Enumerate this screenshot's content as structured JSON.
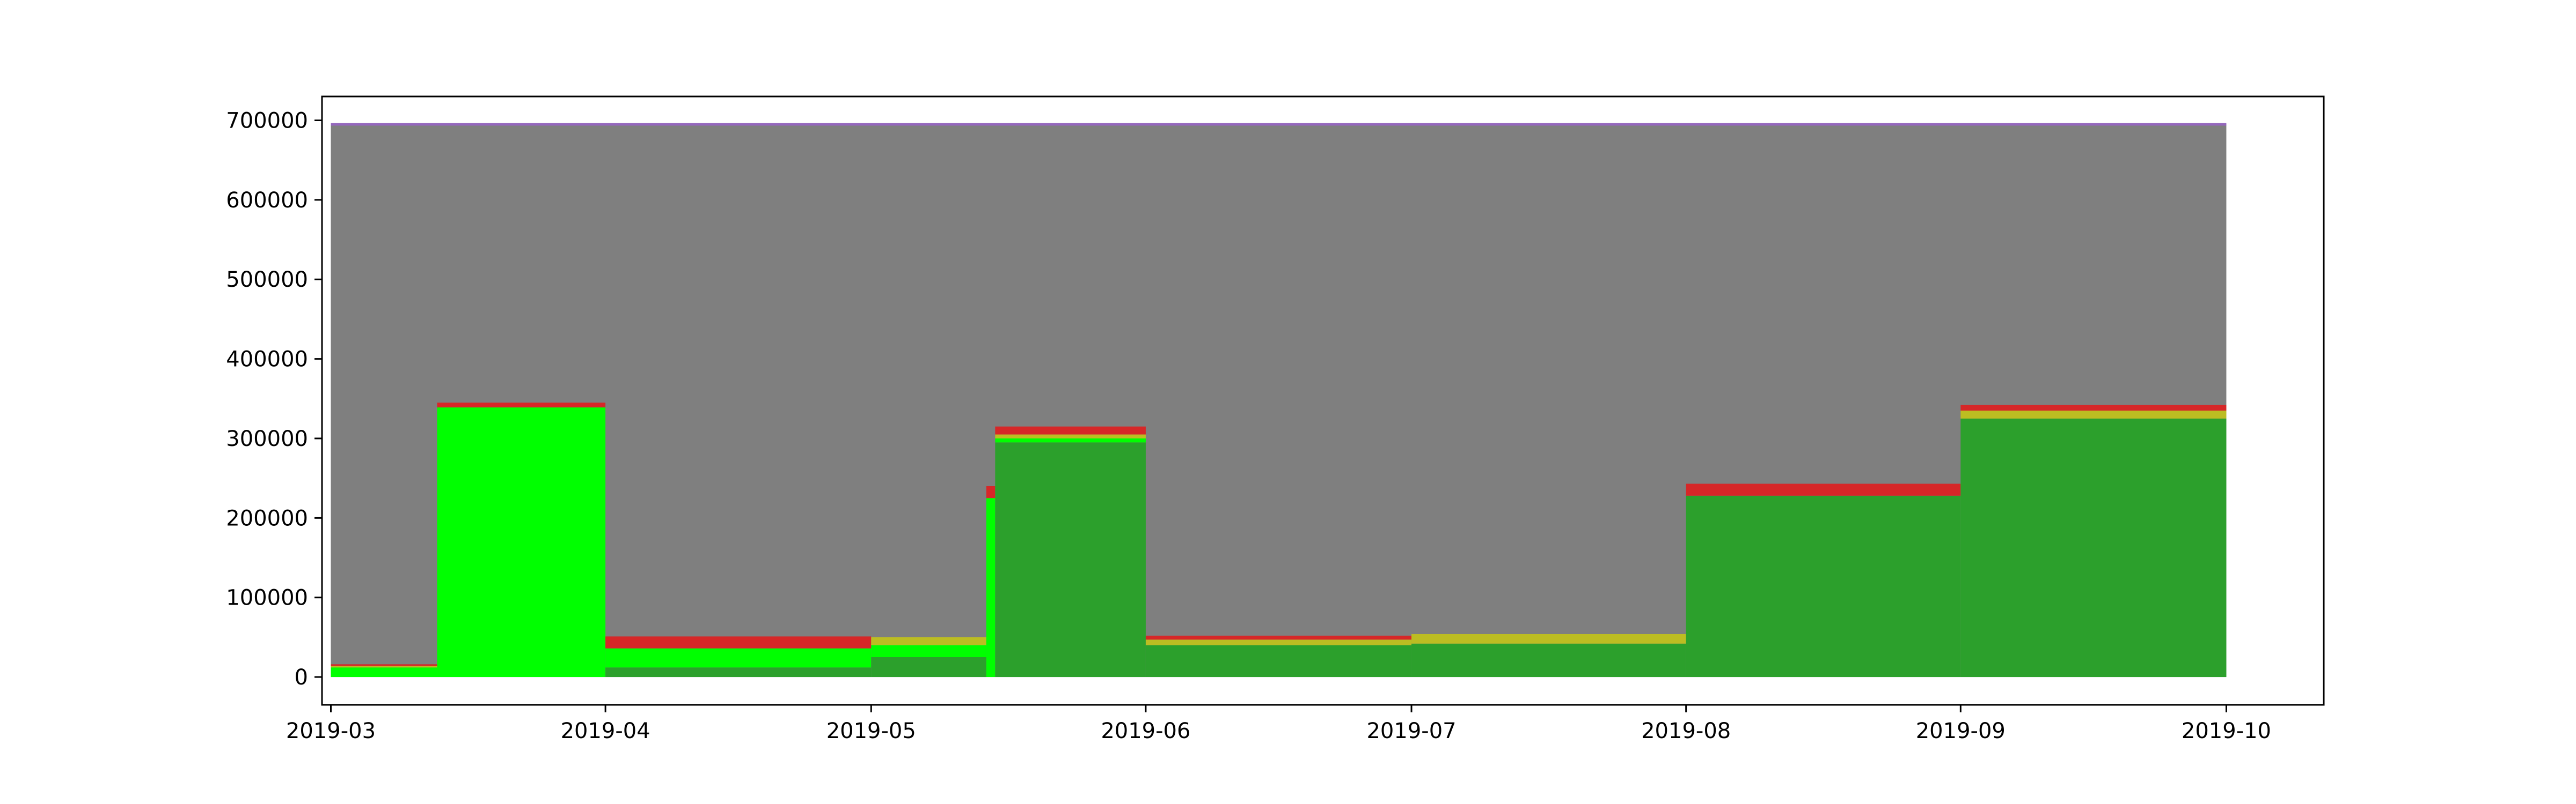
{
  "chart_data": {
    "type": "area",
    "title": "",
    "xlabel": "",
    "ylabel": "",
    "xlim": [
      "2019-02-28",
      "2019-10-12"
    ],
    "ylim": [
      -35000,
      730000
    ],
    "grid": false,
    "legend": "none",
    "x_ticks": [
      {
        "date": "2019-03-01",
        "label": "2019-03"
      },
      {
        "date": "2019-04-01",
        "label": "2019-04"
      },
      {
        "date": "2019-05-01",
        "label": "2019-05"
      },
      {
        "date": "2019-06-01",
        "label": "2019-06"
      },
      {
        "date": "2019-07-01",
        "label": "2019-07"
      },
      {
        "date": "2019-08-01",
        "label": "2019-08"
      },
      {
        "date": "2019-09-01",
        "label": "2019-09"
      },
      {
        "date": "2019-10-01",
        "label": "2019-10"
      }
    ],
    "y_ticks": [
      {
        "value": 0,
        "label": "0"
      },
      {
        "value": 100000,
        "label": "100000"
      },
      {
        "value": 200000,
        "label": "200000"
      },
      {
        "value": 300000,
        "label": "300000"
      },
      {
        "value": 400000,
        "label": "400000"
      },
      {
        "value": 500000,
        "label": "500000"
      },
      {
        "value": 600000,
        "label": "600000"
      },
      {
        "value": 700000,
        "label": "700000"
      }
    ],
    "colors": {
      "gray": "#7f7f7f",
      "purple": "#9467bd",
      "red": "#d62728",
      "olive": "#bcbd22",
      "orange": "#ff7f0e",
      "bright_green": "#00ff00",
      "green": "#2ca02c",
      "frame": "#000000",
      "background": "#ffffff"
    },
    "segments": [
      {
        "start": "2019-03-01",
        "end": "2019-03-13",
        "base_color": "bright_green",
        "stack": [
          {
            "color": "bright_green",
            "value": 12000
          },
          {
            "color": "olive",
            "value": 2000
          },
          {
            "color": "red",
            "value": 2000
          }
        ]
      },
      {
        "start": "2019-03-13",
        "end": "2019-04-01",
        "base_color": "bright_green",
        "stack": [
          {
            "color": "bright_green",
            "value": 339000
          },
          {
            "color": "red",
            "value": 6000
          }
        ]
      },
      {
        "start": "2019-04-01",
        "end": "2019-05-01",
        "base_color": "green",
        "stack": [
          {
            "color": "green",
            "value": 12000
          },
          {
            "color": "bright_green",
            "value": 24000
          },
          {
            "color": "red",
            "value": 15000
          }
        ]
      },
      {
        "start": "2019-05-01",
        "end": "2019-05-14",
        "base_color": "green",
        "stack": [
          {
            "color": "green",
            "value": 25000
          },
          {
            "color": "bright_green",
            "value": 15000
          },
          {
            "color": "olive",
            "value": 10000
          }
        ]
      },
      {
        "start": "2019-05-14",
        "end": "2019-05-15",
        "base_color": "bright_green",
        "stack": [
          {
            "color": "bright_green",
            "value": 225000
          },
          {
            "color": "red",
            "value": 15000
          }
        ]
      },
      {
        "start": "2019-05-15",
        "end": "2019-06-01",
        "base_color": "green",
        "stack": [
          {
            "color": "green",
            "value": 295000
          },
          {
            "color": "bright_green",
            "value": 5000
          },
          {
            "color": "olive",
            "value": 5000
          },
          {
            "color": "red",
            "value": 10000
          }
        ]
      },
      {
        "start": "2019-06-01",
        "end": "2019-07-01",
        "base_color": "green",
        "stack": [
          {
            "color": "green",
            "value": 40000
          },
          {
            "color": "olive",
            "value": 7000
          },
          {
            "color": "red",
            "value": 5000
          }
        ]
      },
      {
        "start": "2019-07-01",
        "end": "2019-08-01",
        "base_color": "green",
        "stack": [
          {
            "color": "green",
            "value": 42000
          },
          {
            "color": "olive",
            "value": 12000
          }
        ]
      },
      {
        "start": "2019-08-01",
        "end": "2019-09-01",
        "base_color": "green",
        "stack": [
          {
            "color": "green",
            "value": 228000
          },
          {
            "color": "red",
            "value": 15000
          }
        ]
      },
      {
        "start": "2019-09-01",
        "end": "2019-10-01",
        "base_color": "green",
        "stack": [
          {
            "color": "green",
            "value": 325000
          },
          {
            "color": "olive",
            "value": 10000
          },
          {
            "color": "red",
            "value": 7000
          }
        ]
      }
    ],
    "total": 695000,
    "total_start": "2019-03-01",
    "total_end": "2019-10-01"
  }
}
